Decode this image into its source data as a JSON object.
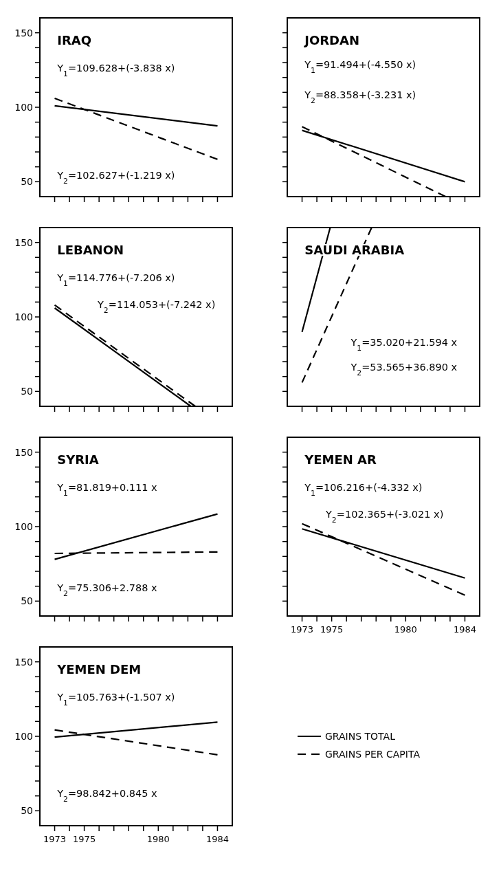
{
  "chart_data": [
    {
      "type": "line",
      "title": "IRAQ",
      "annotations": [
        "Y$_{1}$=109.628+(-3.838  x)",
        "Y$_{2}$=102.627+(-1.219  x)"
      ],
      "xlim": [
        1972,
        1985
      ],
      "xticks": [
        1973,
        {
          "value": 1974,
          "label": null
        },
        1975,
        {
          "value": 1976,
          "label": null
        },
        {
          "value": 1977,
          "label": null
        },
        {
          "value": 1978,
          "label": null
        },
        {
          "value": 1979,
          "label": null
        },
        1980,
        {
          "value": 1981,
          "label": null
        },
        {
          "value": 1982,
          "label": null
        },
        {
          "value": 1983,
          "label": null
        },
        1984
      ],
      "ylim": [
        40,
        160
      ],
      "yticks": [
        50,
        {
          "value": 60,
          "label": null
        },
        {
          "value": 70,
          "label": null
        },
        {
          "value": 80,
          "label": null
        },
        {
          "value": 90,
          "label": null
        },
        100,
        {
          "value": 110,
          "label": null
        },
        {
          "value": 120,
          "label": null
        },
        {
          "value": 130,
          "label": null
        },
        {
          "value": 140,
          "label": null
        },
        150
      ],
      "tick_labels": "y",
      "series": [
        {
          "color": "#000000",
          "line_style": "solid",
          "x": [
            1973,
            1984
          ],
          "values": [
            101,
            87.5
          ]
        },
        {
          "color": "#000000",
          "line_style": "dashed",
          "x": [
            1973,
            1984
          ],
          "values": [
            106,
            65
          ]
        }
      ]
    },
    {
      "type": "line",
      "title": "JORDAN",
      "annotations": [
        "Y$_{1}$=91.494+(-4.550  x)",
        "Y$_{2}$=88.358+(-3.231  x)"
      ],
      "xlim": [
        1972,
        1985
      ],
      "xticks": [
        1973,
        {
          "value": 1974,
          "label": null
        },
        1975,
        {
          "value": 1976,
          "label": null
        },
        {
          "value": 1977,
          "label": null
        },
        {
          "value": 1978,
          "label": null
        },
        {
          "value": 1979,
          "label": null
        },
        1980,
        {
          "value": 1981,
          "label": null
        },
        {
          "value": 1982,
          "label": null
        },
        {
          "value": 1983,
          "label": null
        },
        1984
      ],
      "ylim": [
        40,
        160
      ],
      "yticks": [
        50,
        {
          "value": 60,
          "label": null
        },
        {
          "value": 70,
          "label": null
        },
        {
          "value": 80,
          "label": null
        },
        {
          "value": 90,
          "label": null
        },
        100,
        {
          "value": 110,
          "label": null
        },
        {
          "value": 120,
          "label": null
        },
        {
          "value": 130,
          "label": null
        },
        {
          "value": 140,
          "label": null
        },
        150
      ],
      "tick_labels": false,
      "series": [
        {
          "color": "#000000",
          "line_style": "solid",
          "x": [
            1973,
            1984
          ],
          "values": [
            84.5,
            50
          ]
        },
        {
          "color": "#000000",
          "line_style": "dashed",
          "x": [
            1973,
            1982.7
          ],
          "values": [
            87,
            40
          ]
        }
      ]
    },
    {
      "type": "line",
      "title": "LEBANON",
      "annotations": [
        "Y$_{1}$=114.776+(-7.206  x)",
        "Y$_{2}$=114.053+(-7.242 x)"
      ],
      "xlim": [
        1972,
        1985
      ],
      "xticks": [
        1973,
        {
          "value": 1974,
          "label": null
        },
        1975,
        {
          "value": 1976,
          "label": null
        },
        {
          "value": 1977,
          "label": null
        },
        {
          "value": 1978,
          "label": null
        },
        {
          "value": 1979,
          "label": null
        },
        1980,
        {
          "value": 1981,
          "label": null
        },
        {
          "value": 1982,
          "label": null
        },
        {
          "value": 1983,
          "label": null
        },
        1984
      ],
      "ylim": [
        40,
        160
      ],
      "yticks": [
        50,
        {
          "value": 60,
          "label": null
        },
        {
          "value": 70,
          "label": null
        },
        {
          "value": 80,
          "label": null
        },
        {
          "value": 90,
          "label": null
        },
        100,
        {
          "value": 110,
          "label": null
        },
        {
          "value": 120,
          "label": null
        },
        {
          "value": 130,
          "label": null
        },
        {
          "value": 140,
          "label": null
        },
        150
      ],
      "tick_labels": "y",
      "series": [
        {
          "color": "#000000",
          "line_style": "solid",
          "x": [
            1973,
            1982.2
          ],
          "values": [
            106,
            40
          ]
        },
        {
          "color": "#000000",
          "line_style": "dashed",
          "x": [
            1973,
            1982.5
          ],
          "values": [
            108,
            40
          ]
        }
      ]
    },
    {
      "type": "line",
      "title": "SAUDI ARABIA",
      "annotations": [
        "Y$_{1}$=35.020+21.594  x",
        "Y$_{2}$=53.565+36.890  x"
      ],
      "xlim": [
        1972,
        1985
      ],
      "xticks": [
        1973,
        {
          "value": 1974,
          "label": null
        },
        1975,
        {
          "value": 1976,
          "label": null
        },
        {
          "value": 1977,
          "label": null
        },
        {
          "value": 1978,
          "label": null
        },
        {
          "value": 1979,
          "label": null
        },
        1980,
        {
          "value": 1981,
          "label": null
        },
        {
          "value": 1982,
          "label": null
        },
        {
          "value": 1983,
          "label": null
        },
        1984
      ],
      "ylim": [
        40,
        160
      ],
      "yticks": [
        50,
        {
          "value": 60,
          "label": null
        },
        {
          "value": 70,
          "label": null
        },
        {
          "value": 80,
          "label": null
        },
        {
          "value": 90,
          "label": null
        },
        100,
        {
          "value": 110,
          "label": null
        },
        {
          "value": 120,
          "label": null
        },
        {
          "value": 130,
          "label": null
        },
        {
          "value": 140,
          "label": null
        },
        150
      ],
      "tick_labels": false,
      "series": [
        {
          "color": "#000000",
          "line_style": "solid",
          "x": [
            1973,
            1974.9
          ],
          "values": [
            90,
            160
          ]
        },
        {
          "color": "#000000",
          "line_style": "dashed",
          "x": [
            1973,
            1977.7
          ],
          "values": [
            56,
            160
          ]
        }
      ]
    },
    {
      "type": "line",
      "title": "SYRIA",
      "annotations": [
        "Y$_{1}$=81.819+0.111  x",
        "Y$_{2}$=75.306+2.788  x"
      ],
      "xlim": [
        1972,
        1985
      ],
      "xticks": [
        1973,
        {
          "value": 1974,
          "label": null
        },
        1975,
        {
          "value": 1976,
          "label": null
        },
        {
          "value": 1977,
          "label": null
        },
        {
          "value": 1978,
          "label": null
        },
        {
          "value": 1979,
          "label": null
        },
        1980,
        {
          "value": 1981,
          "label": null
        },
        {
          "value": 1982,
          "label": null
        },
        {
          "value": 1983,
          "label": null
        },
        1984
      ],
      "ylim": [
        40,
        160
      ],
      "yticks": [
        50,
        {
          "value": 60,
          "label": null
        },
        {
          "value": 70,
          "label": null
        },
        {
          "value": 80,
          "label": null
        },
        {
          "value": 90,
          "label": null
        },
        100,
        {
          "value": 110,
          "label": null
        },
        {
          "value": 120,
          "label": null
        },
        {
          "value": 130,
          "label": null
        },
        {
          "value": 140,
          "label": null
        },
        150
      ],
      "tick_labels": "y",
      "series": [
        {
          "color": "#000000",
          "line_style": "solid",
          "x": [
            1973,
            1984
          ],
          "values": [
            78,
            108.5
          ]
        },
        {
          "color": "#000000",
          "line_style": "dashed",
          "x": [
            1973,
            1984
          ],
          "values": [
            82,
            83
          ]
        }
      ]
    },
    {
      "type": "line",
      "title": "YEMEN AR",
      "annotations": [
        "Y$_{1}$=106.216+(-4.332  x)",
        "Y$_{2}$=102.365+(-3.021 x)"
      ],
      "xlim": [
        1972,
        1985
      ],
      "xticks": [
        1973,
        {
          "value": 1974,
          "label": null
        },
        1975,
        {
          "value": 1976,
          "label": null
        },
        {
          "value": 1977,
          "label": null
        },
        {
          "value": 1978,
          "label": null
        },
        {
          "value": 1979,
          "label": null
        },
        1980,
        {
          "value": 1981,
          "label": null
        },
        {
          "value": 1982,
          "label": null
        },
        {
          "value": 1983,
          "label": null
        },
        1984
      ],
      "ylim": [
        40,
        160
      ],
      "yticks": [
        50,
        {
          "value": 60,
          "label": null
        },
        {
          "value": 70,
          "label": null
        },
        {
          "value": 80,
          "label": null
        },
        {
          "value": 90,
          "label": null
        },
        100,
        {
          "value": 110,
          "label": null
        },
        {
          "value": 120,
          "label": null
        },
        {
          "value": 130,
          "label": null
        },
        {
          "value": 140,
          "label": null
        },
        150
      ],
      "tick_labels": "x",
      "series": [
        {
          "color": "#000000",
          "line_style": "solid",
          "x": [
            1973,
            1984
          ],
          "values": [
            98.5,
            65.5
          ]
        },
        {
          "color": "#000000",
          "line_style": "dashed",
          "x": [
            1973,
            1984
          ],
          "values": [
            102,
            54
          ]
        }
      ]
    },
    {
      "type": "line",
      "title": "YEMEN DEM",
      "annotations": [
        "Y$_{1}$=105.763+(-1.507 x)",
        "Y$_{2}$=98.842+0.845  x"
      ],
      "xlim": [
        1972,
        1985
      ],
      "xticks": [
        1973,
        {
          "value": 1974,
          "label": null
        },
        1975,
        {
          "value": 1976,
          "label": null
        },
        {
          "value": 1977,
          "label": null
        },
        {
          "value": 1978,
          "label": null
        },
        {
          "value": 1979,
          "label": null
        },
        1980,
        {
          "value": 1981,
          "label": null
        },
        {
          "value": 1982,
          "label": null
        },
        {
          "value": 1983,
          "label": null
        },
        1984
      ],
      "ylim": [
        40,
        160
      ],
      "yticks": [
        50,
        {
          "value": 60,
          "label": null
        },
        {
          "value": 70,
          "label": null
        },
        {
          "value": 80,
          "label": null
        },
        {
          "value": 90,
          "label": null
        },
        100,
        {
          "value": 110,
          "label": null
        },
        {
          "value": 120,
          "label": null
        },
        {
          "value": 130,
          "label": null
        },
        {
          "value": 140,
          "label": null
        },
        150
      ],
      "legend": "right",
      "series": [
        {
          "name": "GRAINS TOTAL",
          "color": "#000000",
          "line_style": "solid",
          "x": [
            1973,
            1984
          ],
          "values": [
            99.5,
            109.5
          ]
        },
        {
          "name": "GRAINS PER CAPITA",
          "color": "#000000",
          "line_style": "dashed",
          "x": [
            1973,
            1984
          ],
          "values": [
            104.3,
            87.6
          ]
        }
      ]
    }
  ]
}
